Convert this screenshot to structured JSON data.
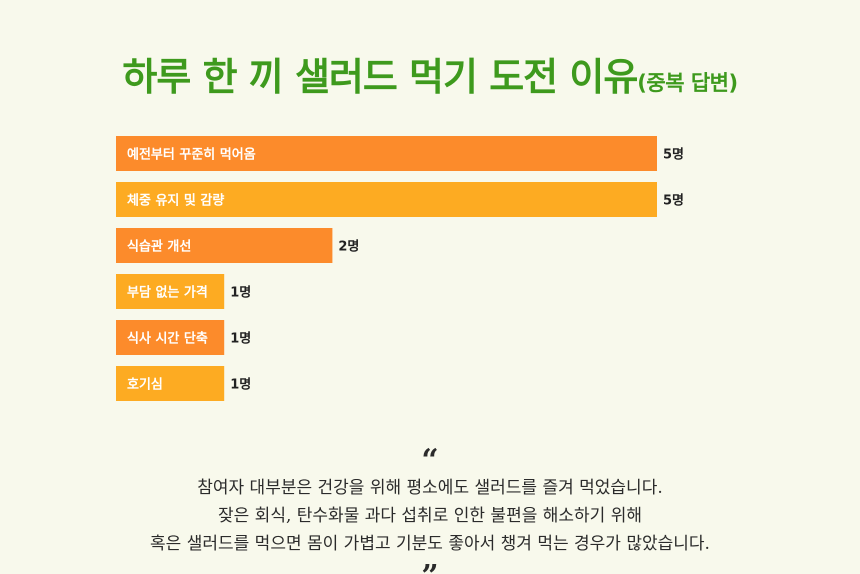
{
  "title": {
    "main": "하루 한 끼 샐러드 먹기 도전 이유",
    "sub": "(중복 답변)"
  },
  "chart_data": {
    "type": "bar",
    "orientation": "horizontal",
    "categories": [
      "예전부터 꾸준히 먹어옴",
      "체중 유지 및 감량",
      "식습관 개선",
      "부담 없는 가격",
      "식사 시간 단축",
      "호기심"
    ],
    "values": [
      5,
      5,
      2,
      1,
      1,
      1
    ],
    "unit": "명",
    "value_labels": [
      "5명",
      "5명",
      "2명",
      "1명",
      "1명",
      "1명"
    ],
    "colors": [
      "#fc8b2b",
      "#fdab22",
      "#fc8b2b",
      "#fdab22",
      "#fc8b2b",
      "#fdab22"
    ],
    "xlim": [
      0,
      5
    ],
    "grid": false
  },
  "quote": {
    "open_mark": "“",
    "close_mark": "”",
    "lines": [
      "참여자 대부분은 건강을 위해 평소에도 샐러드를 즐겨 먹었습니다.",
      "잦은 회식, 탄수화물 과다 섭취로 인한 불편을 해소하기 위해",
      "혹은 샐러드를 먹으면 몸이 가볍고 기분도 좋아서 챙겨 먹는 경우가 많았습니다."
    ]
  }
}
